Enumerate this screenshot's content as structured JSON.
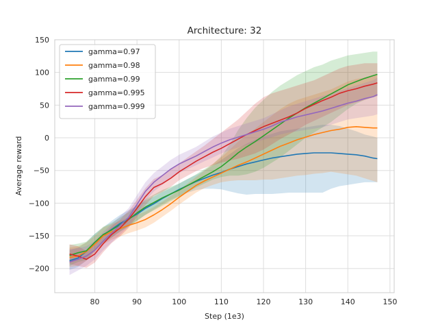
{
  "chart_data": {
    "type": "line",
    "title": "Architecture: 32",
    "xlabel": "Step (1e3)",
    "ylabel": "Average reward",
    "xlim": [
      70.5,
      151
    ],
    "ylim": [
      -237,
      150
    ],
    "xticks": [
      80,
      90,
      100,
      110,
      120,
      130,
      140,
      150
    ],
    "yticks": [
      -200,
      -150,
      -100,
      -50,
      0,
      50,
      100,
      150
    ],
    "grid": true,
    "legend_position": "upper-left",
    "x": [
      74,
      76,
      78,
      80,
      82,
      84,
      86,
      88,
      90,
      92,
      94,
      96,
      98,
      100,
      102,
      104,
      106,
      108,
      110,
      112,
      114,
      116,
      118,
      120,
      122,
      124,
      126,
      128,
      130,
      132,
      134,
      136,
      138,
      140,
      142,
      144,
      146,
      147
    ],
    "series": [
      {
        "name": "gamma=0.97",
        "color": "#1f77b4",
        "values": [
          -188,
          -184,
          -174,
          -160,
          -149,
          -140,
          -131,
          -124,
          -117,
          -108,
          -101,
          -93,
          -86,
          -79,
          -73,
          -67,
          -62,
          -57,
          -53,
          -48,
          -44,
          -40,
          -37,
          -34,
          -31,
          -29,
          -27,
          -25,
          -24,
          -23,
          -23,
          -23,
          -24,
          -25,
          -26,
          -28,
          -31,
          -32
        ],
        "lower": [
          -202,
          -198,
          -188,
          -173,
          -162,
          -153,
          -143,
          -135,
          -127,
          -118,
          -110,
          -102,
          -95,
          -89,
          -84,
          -80,
          -78,
          -78,
          -79,
          -82,
          -85,
          -87,
          -86,
          -86,
          -86,
          -85,
          -84,
          -84,
          -84,
          -84,
          -84,
          -78,
          -74,
          -72,
          -70,
          -68,
          -68,
          -68
        ],
        "upper": [
          -172,
          -168,
          -160,
          -147,
          -137,
          -127,
          -118,
          -111,
          -104,
          -96,
          -90,
          -83,
          -77,
          -70,
          -63,
          -57,
          -50,
          -42,
          -34,
          -25,
          -16,
          -9,
          -3,
          2,
          6,
          10,
          12,
          14,
          16,
          18,
          20,
          20,
          18,
          14,
          10,
          5,
          2,
          0
        ]
      },
      {
        "name": "gamma=0.98",
        "color": "#ff7f0e",
        "values": [
          -183,
          -181,
          -174,
          -163,
          -150,
          -144,
          -139,
          -134,
          -130,
          -125,
          -118,
          -110,
          -101,
          -91,
          -82,
          -73,
          -66,
          -60,
          -54,
          -48,
          -42,
          -37,
          -31,
          -25,
          -19,
          -13,
          -8,
          -3,
          1,
          5,
          8,
          11,
          13,
          16,
          17,
          16,
          15,
          15
        ],
        "lower": [
          -198,
          -196,
          -188,
          -176,
          -163,
          -156,
          -151,
          -146,
          -142,
          -137,
          -130,
          -121,
          -112,
          -102,
          -93,
          -84,
          -77,
          -72,
          -68,
          -66,
          -65,
          -65,
          -65,
          -64,
          -64,
          -62,
          -60,
          -58,
          -57,
          -55,
          -54,
          -52,
          -54,
          -56,
          -58,
          -62,
          -66,
          -68
        ],
        "upper": [
          -168,
          -166,
          -160,
          -150,
          -137,
          -132,
          -127,
          -122,
          -118,
          -113,
          -106,
          -98,
          -89,
          -80,
          -70,
          -60,
          -50,
          -40,
          -30,
          -18,
          -6,
          4,
          14,
          24,
          34,
          44,
          52,
          58,
          62,
          66,
          70,
          74,
          80,
          86,
          90,
          92,
          94,
          96
        ]
      },
      {
        "name": "gamma=0.99",
        "color": "#2ca02c",
        "values": [
          -180,
          -176,
          -173,
          -160,
          -148,
          -141,
          -133,
          -125,
          -115,
          -106,
          -99,
          -92,
          -86,
          -80,
          -73,
          -66,
          -59,
          -52,
          -44,
          -34,
          -23,
          -14,
          -6,
          3,
          12,
          21,
          30,
          38,
          46,
          53,
          60,
          67,
          74,
          81,
          86,
          91,
          95,
          97
        ],
        "lower": [
          -196,
          -190,
          -187,
          -173,
          -160,
          -152,
          -144,
          -136,
          -127,
          -118,
          -111,
          -104,
          -97,
          -90,
          -83,
          -76,
          -70,
          -64,
          -60,
          -58,
          -58,
          -56,
          -52,
          -46,
          -38,
          -30,
          -20,
          -10,
          0,
          8,
          16,
          24,
          34,
          44,
          52,
          58,
          62,
          64
        ],
        "upper": [
          -164,
          -162,
          -159,
          -147,
          -136,
          -130,
          -122,
          -114,
          -103,
          -94,
          -87,
          -80,
          -75,
          -70,
          -63,
          -56,
          -48,
          -40,
          -28,
          -10,
          12,
          30,
          46,
          58,
          70,
          80,
          88,
          96,
          102,
          108,
          112,
          118,
          122,
          126,
          128,
          130,
          132,
          132
        ]
      },
      {
        "name": "gamma=0.995",
        "color": "#d62728",
        "values": [
          -178,
          -181,
          -186,
          -178,
          -162,
          -148,
          -138,
          -125,
          -108,
          -90,
          -76,
          -70,
          -62,
          -52,
          -44,
          -36,
          -29,
          -22,
          -16,
          -9,
          -2,
          5,
          11,
          17,
          22,
          27,
          32,
          38,
          45,
          51,
          57,
          62,
          68,
          72,
          75,
          79,
          82,
          84
        ],
        "lower": [
          -193,
          -196,
          -199,
          -191,
          -175,
          -161,
          -151,
          -138,
          -121,
          -103,
          -89,
          -83,
          -75,
          -65,
          -58,
          -51,
          -46,
          -42,
          -38,
          -35,
          -32,
          -28,
          -24,
          -18,
          -10,
          -2,
          5,
          12,
          20,
          26,
          32,
          38,
          44,
          50,
          54,
          58,
          62,
          64
        ],
        "upper": [
          -163,
          -166,
          -173,
          -165,
          -149,
          -135,
          -125,
          -112,
          -95,
          -77,
          -63,
          -57,
          -49,
          -39,
          -30,
          -21,
          -12,
          -2,
          8,
          18,
          28,
          40,
          52,
          62,
          68,
          72,
          76,
          80,
          84,
          88,
          94,
          100,
          106,
          110,
          112,
          114,
          114,
          114
        ]
      },
      {
        "name": "gamma=0.999",
        "color": "#9467bd",
        "values": [
          -190,
          -186,
          -181,
          -172,
          -158,
          -146,
          -134,
          -122,
          -102,
          -82,
          -68,
          -58,
          -48,
          -40,
          -34,
          -28,
          -21,
          -14,
          -8,
          -3,
          1,
          5,
          9,
          13,
          18,
          24,
          28,
          32,
          35,
          38,
          41,
          45,
          49,
          53,
          56,
          60,
          63,
          66
        ],
        "lower": [
          -210,
          -203,
          -196,
          -186,
          -172,
          -160,
          -148,
          -136,
          -116,
          -96,
          -82,
          -72,
          -62,
          -54,
          -48,
          -42,
          -36,
          -30,
          -24,
          -19,
          -15,
          -11,
          -7,
          -3,
          1,
          5,
          8,
          10,
          12,
          14,
          16,
          20,
          24,
          28,
          30,
          32,
          34,
          36
        ],
        "upper": [
          -170,
          -169,
          -166,
          -158,
          -144,
          -132,
          -120,
          -108,
          -88,
          -68,
          -54,
          -44,
          -34,
          -26,
          -20,
          -14,
          -6,
          2,
          8,
          14,
          18,
          22,
          26,
          30,
          36,
          42,
          48,
          52,
          56,
          60,
          64,
          68,
          72,
          76,
          80,
          84,
          88,
          92
        ]
      }
    ]
  }
}
